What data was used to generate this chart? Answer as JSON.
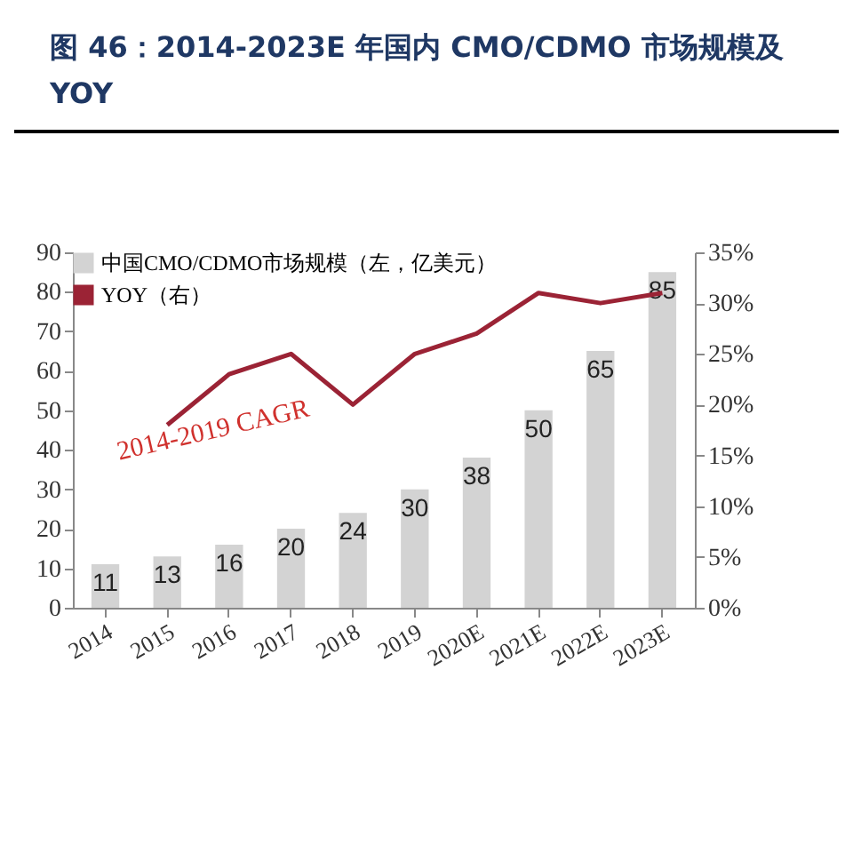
{
  "chart_data": {
    "type": "bar",
    "title": "图 46：2014-2023E 年国内 CMO/CDMO 市场规模及 YOY",
    "categories": [
      "2014",
      "2015",
      "2016",
      "2017",
      "2018",
      "2019",
      "2020E",
      "2021E",
      "2022E",
      "2023E"
    ],
    "series": [
      {
        "name": "中国CMO/CDMO市场规模（左，亿美元）",
        "color": "#d3d3d3",
        "values": [
          11,
          13,
          16,
          20,
          24,
          30,
          38,
          50,
          65,
          85
        ],
        "value_labels": [
          "11",
          "13",
          "16",
          "20",
          "24",
          "30",
          "38",
          "50",
          "65",
          "85"
        ]
      },
      {
        "name": "YOY（右）",
        "type": "line",
        "axis": "y2",
        "color": "#9b2335",
        "values": [
          null,
          18,
          23,
          25,
          20,
          25,
          27,
          31,
          30,
          31
        ]
      }
    ],
    "ylim": [
      0,
      90
    ],
    "yticks": [
      0,
      10,
      20,
      30,
      40,
      50,
      60,
      70,
      80,
      90
    ],
    "y2lim": [
      0,
      35
    ],
    "y2ticks": [
      {
        "value": 0,
        "label": "0%"
      },
      {
        "value": 5,
        "label": "5%"
      },
      {
        "value": 10,
        "label": "10%"
      },
      {
        "value": 15,
        "label": "15%"
      },
      {
        "value": 20,
        "label": "20%"
      },
      {
        "value": 25,
        "label": "25%"
      },
      {
        "value": 30,
        "label": "30%"
      },
      {
        "value": 35,
        "label": "35%"
      }
    ],
    "annotations": [
      "2014-2019 CAGR"
    ],
    "legend": "top left",
    "grid": false
  }
}
